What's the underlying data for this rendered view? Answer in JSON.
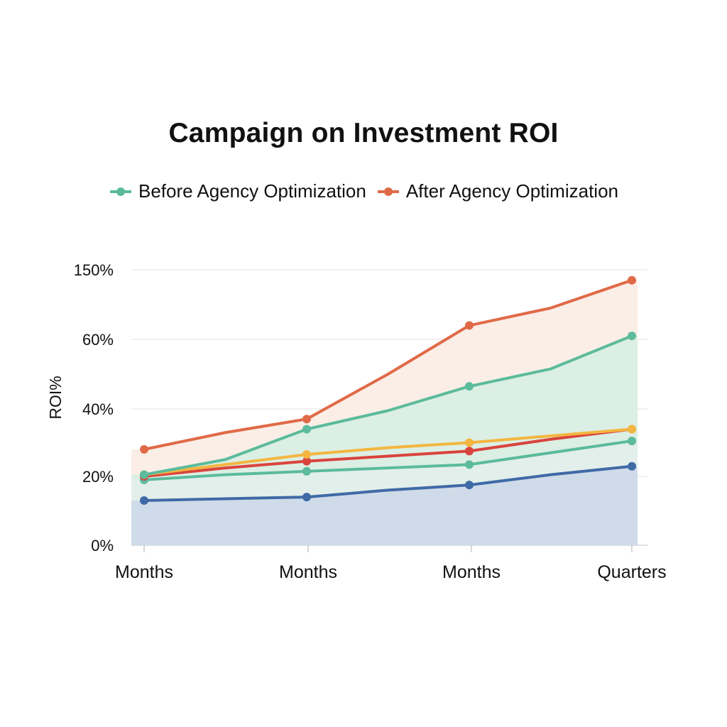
{
  "chart_data": {
    "type": "area",
    "title": "Campaign on Investment ROI",
    "xlabel": "",
    "ylabel": "ROI%",
    "categories": [
      "Months",
      "Months",
      "Months",
      "Quarters"
    ],
    "y_tick_labels": [
      "0%",
      "20%",
      "40%",
      "60%",
      "150%"
    ],
    "legend": [
      "Before Agency Optimization",
      "After Agency Optimization"
    ],
    "legend_placement": "top-center",
    "grid": true,
    "x": [
      0,
      0.5,
      1,
      1.5,
      2,
      2.5,
      3
    ],
    "series": [
      {
        "color": "#e06a48",
        "fill": "#fbeee6",
        "values": [
          28,
          33,
          37,
          50,
          64,
          69,
          77
        ]
      },
      {
        "color": "#5bbb9c",
        "fill": "#dcefe4",
        "values": [
          20.5,
          25,
          34,
          39.5,
          46.5,
          51.5,
          61
        ]
      },
      {
        "color": "#f3b640",
        "fill": null,
        "values": [
          20.5,
          23.5,
          26.5,
          28.5,
          30,
          32,
          34
        ]
      },
      {
        "color": "#d9443d",
        "fill": null,
        "values": [
          20,
          22.5,
          24.5,
          26,
          27.5,
          31,
          34
        ]
      },
      {
        "color": "#5bbb9c",
        "fill": "#e3efea",
        "values": [
          19,
          20.5,
          21.5,
          22.5,
          23.5,
          27,
          30.5
        ]
      },
      {
        "color": "#3f6aa6",
        "fill": "#cfdbe9",
        "values": [
          13,
          13.5,
          14,
          16,
          17.5,
          20.5,
          23
        ]
      }
    ],
    "legend_colors": [
      "#5bbb9c",
      "#e06a48"
    ]
  }
}
